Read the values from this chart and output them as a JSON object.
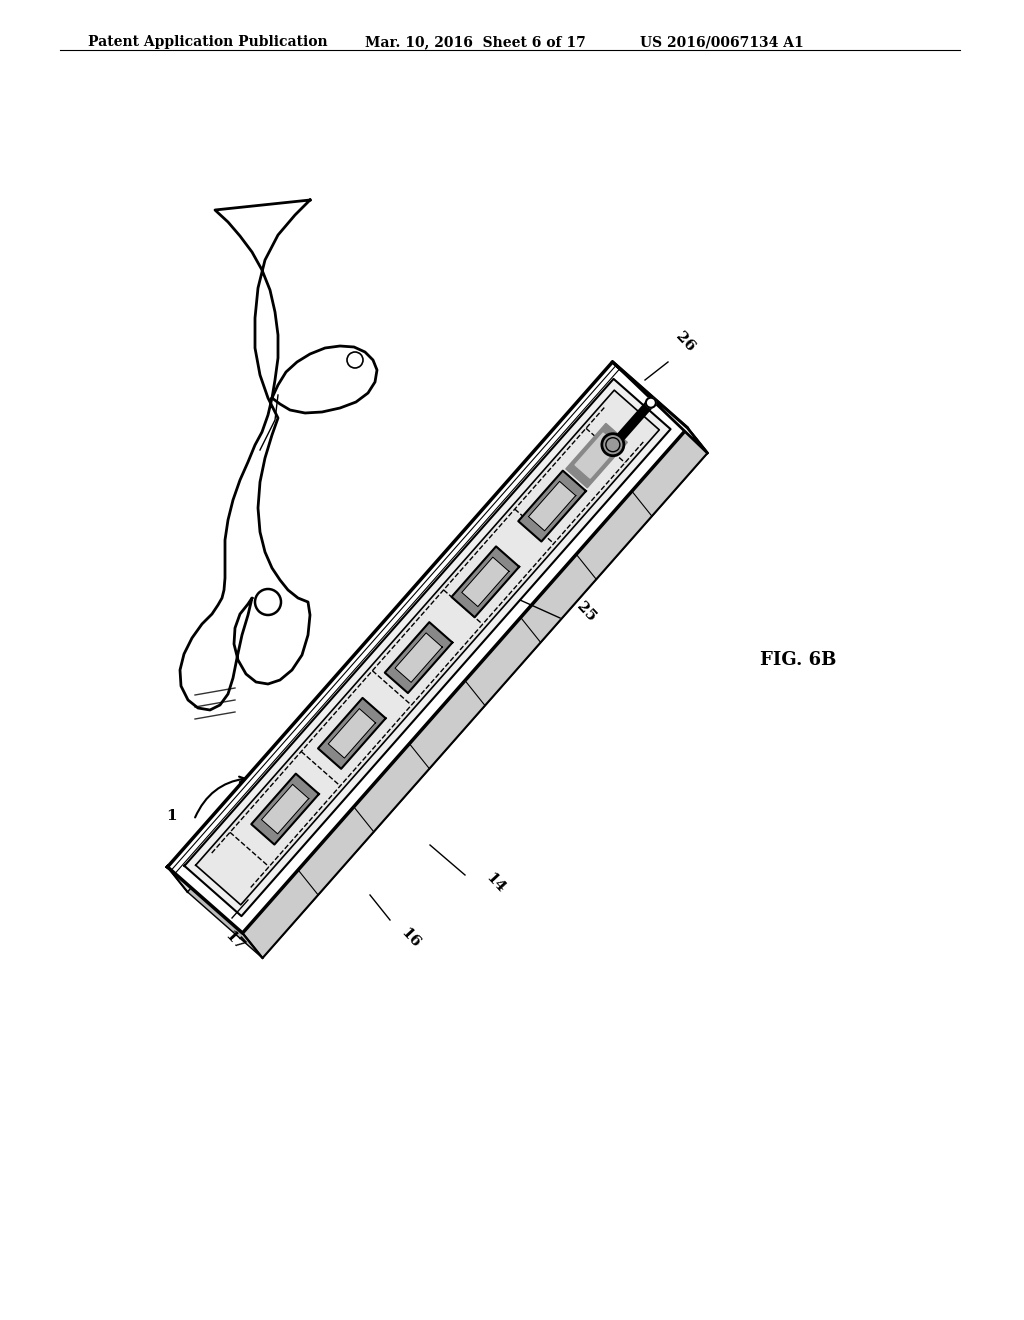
{
  "background_color": "#ffffff",
  "header_left": "Patent Application Publication",
  "header_mid": "Mar. 10, 2016  Sheet 6 of 17",
  "header_right": "US 2016/0067134 A1",
  "fig_label": "FIG. 6B",
  "line_color": "#000000",
  "header_fontsize": 10,
  "fig_label_fontsize": 13,
  "ref_fontsize": 11
}
